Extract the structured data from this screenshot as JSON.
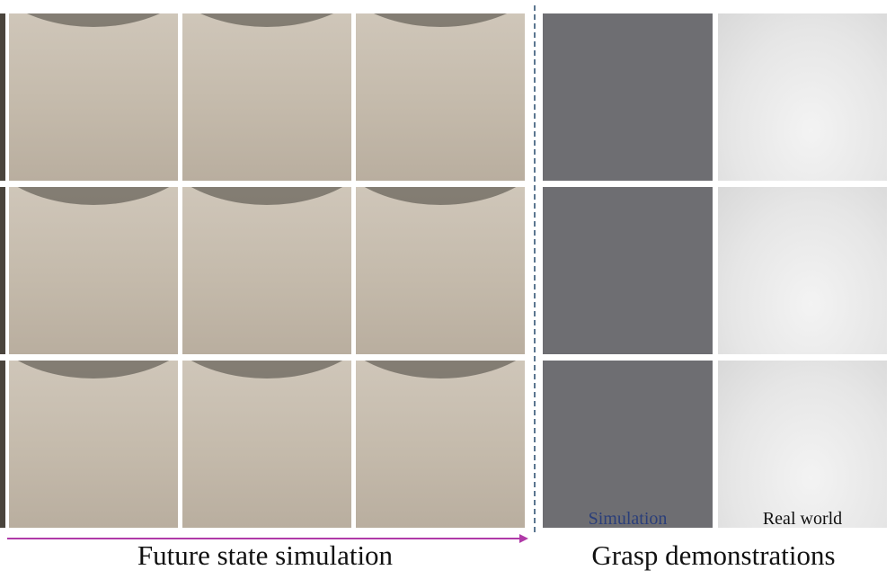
{
  "captions": {
    "left": "Future state simulation",
    "right": "Grasp demonstrations"
  },
  "labels": {
    "simulation": "Simulation",
    "real": "Real world"
  },
  "colors": {
    "arrow": "#b03aa8",
    "divider": "#5b7690",
    "simulation_label": "#2a3e7a",
    "real_label": "#111111"
  }
}
